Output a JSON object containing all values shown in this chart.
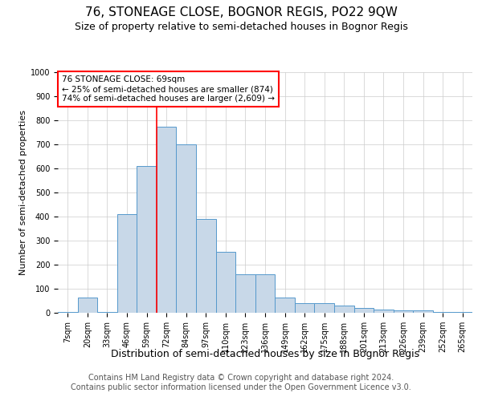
{
  "title": "76, STONEAGE CLOSE, BOGNOR REGIS, PO22 9QW",
  "subtitle": "Size of property relative to semi-detached houses in Bognor Regis",
  "xlabel": "Distribution of semi-detached houses by size in Bognor Regis",
  "ylabel": "Number of semi-detached properties",
  "categories": [
    "7sqm",
    "20sqm",
    "33sqm",
    "46sqm",
    "59sqm",
    "72sqm",
    "84sqm",
    "97sqm",
    "110sqm",
    "123sqm",
    "136sqm",
    "149sqm",
    "162sqm",
    "175sqm",
    "188sqm",
    "201sqm",
    "213sqm",
    "226sqm",
    "239sqm",
    "252sqm",
    "265sqm"
  ],
  "values": [
    5,
    65,
    5,
    410,
    610,
    775,
    700,
    390,
    255,
    160,
    160,
    65,
    40,
    40,
    30,
    20,
    15,
    10,
    10,
    5,
    5
  ],
  "bar_color": "#c8d8e8",
  "bar_edge_color": "#5599cc",
  "grid_color": "#cccccc",
  "reference_line_x": 4.5,
  "reference_line_color": "red",
  "annotation_text": "76 STONEAGE CLOSE: 69sqm\n← 25% of semi-detached houses are smaller (874)\n74% of semi-detached houses are larger (2,609) →",
  "annotation_box_color": "white",
  "annotation_box_edge": "red",
  "footer": "Contains HM Land Registry data © Crown copyright and database right 2024.\nContains public sector information licensed under the Open Government Licence v3.0.",
  "ylim": [
    0,
    1000
  ],
  "title_fontsize": 11,
  "subtitle_fontsize": 9,
  "ylabel_fontsize": 8,
  "xlabel_fontsize": 9,
  "tick_fontsize": 7,
  "annotation_fontsize": 7.5,
  "footer_fontsize": 7
}
